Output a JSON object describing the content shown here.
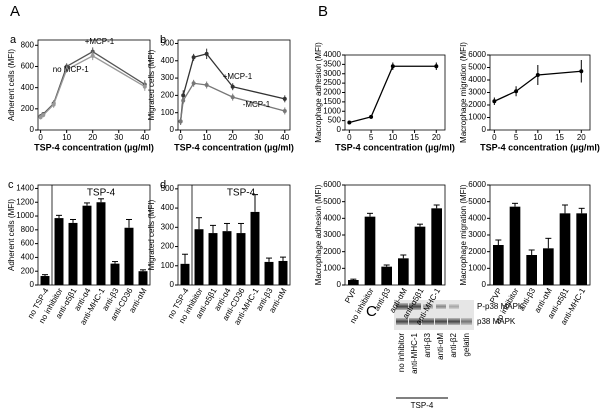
{
  "figure": {
    "panel_a": "A",
    "panel_b": "B",
    "panel_c": "C",
    "blot": {
      "rows": [
        "P-p38 MAPK",
        "p38 MAPK"
      ],
      "lanes": [
        "no inhibitor",
        "anti-MHC-1",
        "anti-β3",
        "anti-αM",
        "anti-β2",
        "gelatin"
      ],
      "group": "TSP-4"
    }
  },
  "chart_data": [
    {
      "type": "line",
      "panel": "a",
      "xlabel": "TSP-4 concentration (µg/ml)",
      "ylabel": "Adherent cells (MFI)",
      "x": [
        0,
        1,
        5,
        10,
        20,
        40
      ],
      "xlim": [
        -1,
        42
      ],
      "xticks": [
        0,
        10,
        20,
        30,
        40
      ],
      "ylim": [
        0,
        850
      ],
      "yticks": [
        0,
        200,
        400,
        600,
        800
      ],
      "series": [
        {
          "name": "+MCP-1",
          "color": "#555555",
          "values": [
            130,
            150,
            250,
            600,
            740,
            430
          ],
          "errors": [
            20,
            20,
            30,
            30,
            40,
            40
          ]
        },
        {
          "name": "no MCP-1",
          "color": "#999999",
          "values": [
            120,
            140,
            240,
            570,
            700,
            410
          ],
          "errors": [
            20,
            20,
            30,
            30,
            40,
            40
          ]
        }
      ]
    },
    {
      "type": "line",
      "panel": "b",
      "xlabel": "TSP-4 concentration (µg/ml)",
      "ylabel": "Migrated cells (MFI)",
      "x": [
        0,
        1,
        5,
        10,
        20,
        40
      ],
      "xlim": [
        -1,
        42
      ],
      "xticks": [
        0,
        10,
        20,
        30,
        40
      ],
      "ylim": [
        0,
        520
      ],
      "yticks": [
        0,
        100,
        200,
        300,
        400,
        500
      ],
      "series": [
        {
          "name": "+MCP-1",
          "color": "#333333",
          "values": [
            50,
            200,
            420,
            440,
            250,
            180
          ],
          "errors": [
            20,
            30,
            20,
            30,
            20,
            20
          ]
        },
        {
          "name": "-MCP-1",
          "color": "#777777",
          "values": [
            50,
            170,
            270,
            260,
            190,
            110
          ],
          "errors": [
            20,
            20,
            20,
            20,
            20,
            20
          ]
        }
      ]
    },
    {
      "type": "bar",
      "panel": "c",
      "ylabel": "Adherent cells (MFI)",
      "annotation": "TSP-4",
      "categories": [
        "no TSP-4",
        "no inhibitor",
        "anti-α5β1",
        "anti-α4",
        "anti-MHC-1",
        "anti-β3",
        "anti-CD36",
        "anti-αM"
      ],
      "values": [
        130,
        970,
        900,
        1150,
        1200,
        310,
        830,
        200
      ],
      "errors": [
        20,
        40,
        50,
        40,
        50,
        30,
        120,
        20
      ],
      "color": "#000000",
      "ylim": [
        0,
        1450
      ],
      "yticks": [
        0,
        200,
        400,
        600,
        800,
        1000,
        1200,
        1400
      ]
    },
    {
      "type": "bar",
      "panel": "d",
      "ylabel": "Migrated cells (MFI)",
      "annotation": "TSP-4",
      "categories": [
        "no TSP-4",
        "no inhibitor",
        "anti-α5β1",
        "anti-α4",
        "anti-CD36",
        "anti-MHC-1",
        "anti-β3",
        "anti-αM"
      ],
      "values": [
        110,
        290,
        270,
        280,
        270,
        380,
        120,
        125
      ],
      "errors": [
        50,
        60,
        40,
        40,
        50,
        90,
        20,
        20
      ],
      "color": "#000000",
      "ylim": [
        0,
        520
      ],
      "yticks": [
        0,
        100,
        200,
        300,
        400,
        500
      ]
    },
    {
      "type": "line",
      "xlabel": "TSP-4 concentration (µg/ml)",
      "ylabel": "Macrophage adhesion (MFI)",
      "x": [
        0,
        5,
        10,
        20
      ],
      "xlim": [
        -1,
        22
      ],
      "xticks": [
        0,
        5,
        10,
        15,
        20
      ],
      "ylim": [
        0,
        4000
      ],
      "yticks": [
        0,
        500,
        1000,
        1500,
        2000,
        2500,
        3000,
        3500,
        4000
      ],
      "series": [
        {
          "name": null,
          "color": "#000000",
          "values": [
            400,
            700,
            3400,
            3400
          ],
          "errors": [
            100,
            100,
            200,
            200
          ]
        }
      ]
    },
    {
      "type": "line",
      "xlabel": "TSP-4 concentration (µg/ml)",
      "ylabel": "Macrophage migration (MFI)",
      "x": [
        0,
        5,
        10,
        20
      ],
      "xlim": [
        -1,
        22
      ],
      "xticks": [
        0,
        5,
        10,
        15,
        20
      ],
      "ylim": [
        0,
        6000
      ],
      "yticks": [
        0,
        1000,
        2000,
        3000,
        4000,
        5000,
        6000
      ],
      "series": [
        {
          "name": null,
          "color": "#000000",
          "values": [
            2300,
            3100,
            4400,
            4700
          ],
          "errors": [
            300,
            400,
            800,
            900
          ]
        }
      ]
    },
    {
      "type": "bar",
      "ylabel": "Macrophage adhesion (MFI)",
      "categories": [
        "PVP",
        "no inhibitor",
        "anti-β3",
        "anti-αM",
        "anti-α5β1",
        "anti-MHC-1"
      ],
      "values": [
        300,
        4100,
        1100,
        1600,
        3500,
        4600
      ],
      "errors": [
        50,
        200,
        100,
        200,
        150,
        200
      ],
      "color": "#000000",
      "ylim": [
        0,
        6000
      ],
      "yticks": [
        0,
        1000,
        2000,
        3000,
        4000,
        5000,
        6000
      ]
    },
    {
      "type": "bar",
      "ylabel": "Macrophage migration (MFI)",
      "categories": [
        "PVP",
        "no inhibitor",
        "anti-β3",
        "anti-αM",
        "anti-α5β1",
        "anti-MHC-1"
      ],
      "values": [
        2400,
        4700,
        1800,
        2200,
        4300,
        4300
      ],
      "errors": [
        300,
        200,
        300,
        600,
        500,
        300
      ],
      "color": "#000000",
      "ylim": [
        0,
        6000
      ],
      "yticks": [
        0,
        1000,
        2000,
        3000,
        4000,
        5000,
        6000
      ]
    }
  ]
}
